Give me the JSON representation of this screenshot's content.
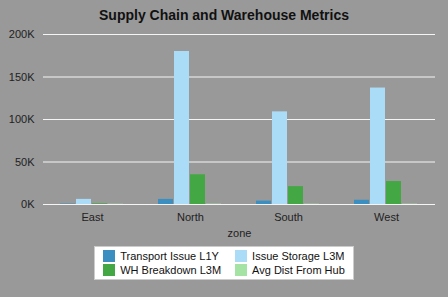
{
  "chart_data": {
    "type": "bar",
    "title": "Supply Chain and Warehouse Metrics",
    "xlabel": "zone",
    "categories": [
      "East",
      "North",
      "South",
      "West"
    ],
    "series": [
      {
        "name": "Transport Issue L1Y",
        "color": "#3a8fc0",
        "values": [
          500,
          6000,
          4000,
          5000
        ]
      },
      {
        "name": "Issue Storage L3M",
        "color": "#aadcf7",
        "values": [
          6000,
          180000,
          109000,
          137000
        ]
      },
      {
        "name": "WH Breakdown L3M",
        "color": "#43a843",
        "values": [
          800,
          35000,
          21000,
          27000
        ]
      },
      {
        "name": "Avg Dist From Hub",
        "color": "#a5e3a5",
        "values": [
          300,
          400,
          350,
          380
        ]
      }
    ],
    "ylim": [
      0,
      200000
    ],
    "yticks": [
      {
        "value": 0,
        "label": "0K"
      },
      {
        "value": 50000,
        "label": "50K"
      },
      {
        "value": 100000,
        "label": "100K"
      },
      {
        "value": 150000,
        "label": "150K"
      },
      {
        "value": 200000,
        "label": "200K"
      }
    ],
    "grid": true,
    "legend": "bottom"
  }
}
